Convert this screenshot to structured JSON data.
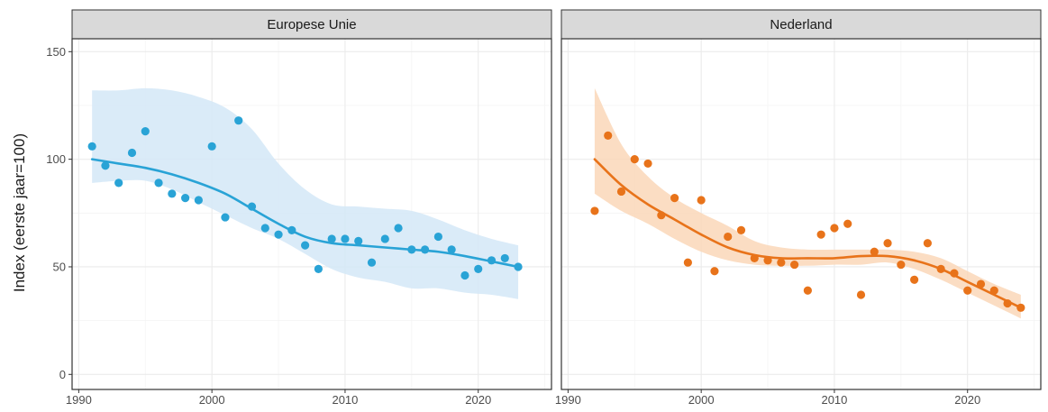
{
  "chart_data": [
    {
      "type": "scatter",
      "facet": "Europese Unie",
      "ylabel": "Index (eerste jaar=100)",
      "xlim": [
        1989.5,
        2025.5
      ],
      "ylim": [
        -7,
        156
      ],
      "xticks": [
        1990,
        2000,
        2010,
        2020
      ],
      "yticks": [
        0,
        50,
        100,
        150
      ],
      "grid": true,
      "color": "#29a3d6",
      "band_color": "#d3e8f7",
      "points": {
        "x": [
          1991,
          1992,
          1993,
          1994,
          1995,
          1996,
          1997,
          1998,
          1999,
          2000,
          2001,
          2002,
          2003,
          2004,
          2005,
          2006,
          2007,
          2008,
          2009,
          2010,
          2011,
          2012,
          2013,
          2014,
          2015,
          2016,
          2017,
          2018,
          2019,
          2020,
          2021,
          2022,
          2023
        ],
        "y": [
          106,
          97,
          89,
          103,
          113,
          89,
          84,
          82,
          81,
          106,
          73,
          118,
          78,
          68,
          65,
          67,
          60,
          49,
          63,
          63,
          62,
          52,
          63,
          68,
          58,
          58,
          64,
          58,
          46,
          49,
          53,
          54,
          50
        ]
      },
      "trend": {
        "x": [
          1991,
          1993,
          1995,
          1997,
          1999,
          2001,
          2003,
          2005,
          2007,
          2009,
          2011,
          2013,
          2015,
          2017,
          2019,
          2021,
          2023
        ],
        "y": [
          100,
          98,
          96,
          93,
          89,
          84,
          77,
          70,
          64,
          61,
          60,
          59,
          58,
          57,
          55,
          52.5,
          50
        ],
        "upper": [
          132,
          132,
          133,
          132,
          129,
          124,
          114,
          98,
          86,
          79,
          78,
          77,
          76,
          72,
          67,
          63,
          60
        ],
        "lower": [
          89,
          90,
          90,
          86,
          80,
          74,
          68,
          63,
          56,
          49,
          45,
          43,
          40,
          40,
          38,
          37,
          35
        ]
      }
    },
    {
      "type": "scatter",
      "facet": "Nederland",
      "xlim": [
        1989.5,
        2025.5
      ],
      "ylim": [
        -7,
        156
      ],
      "xticks": [
        1990,
        2000,
        2010,
        2020
      ],
      "grid": true,
      "color": "#e8731a",
      "band_color": "#fad7b8",
      "points": {
        "x": [
          1992,
          1993,
          1994,
          1995,
          1996,
          1997,
          1998,
          1999,
          2000,
          2001,
          2002,
          2003,
          2004,
          2005,
          2006,
          2007,
          2008,
          2009,
          2010,
          2011,
          2012,
          2013,
          2014,
          2015,
          2016,
          2017,
          2018,
          2019,
          2020,
          2021,
          2022,
          2023,
          2024
        ],
        "y": [
          76,
          111,
          85,
          100,
          98,
          74,
          82,
          52,
          81,
          48,
          64,
          67,
          54,
          53,
          52,
          51,
          39,
          65,
          68,
          70,
          37,
          57,
          61,
          51,
          44,
          61,
          49,
          47,
          39,
          42,
          39,
          33,
          31
        ]
      },
      "trend": {
        "x": [
          1992,
          1994,
          1996,
          1998,
          2000,
          2002,
          2004,
          2006,
          2008,
          2010,
          2012,
          2014,
          2016,
          2018,
          2020,
          2022,
          2024
        ],
        "y": [
          100,
          88,
          79,
          72,
          65,
          59,
          55.5,
          54,
          54,
          54,
          55,
          55,
          53,
          49,
          43,
          37,
          31
        ],
        "upper": [
          133,
          107,
          92,
          82,
          75,
          69,
          62,
          59,
          58,
          58,
          58,
          58,
          57,
          54,
          48,
          42,
          37
        ],
        "lower": [
          84,
          76,
          70,
          63,
          57,
          53,
          51,
          50.5,
          50.5,
          51,
          51,
          52,
          49,
          44,
          38,
          32,
          26
        ]
      }
    }
  ]
}
